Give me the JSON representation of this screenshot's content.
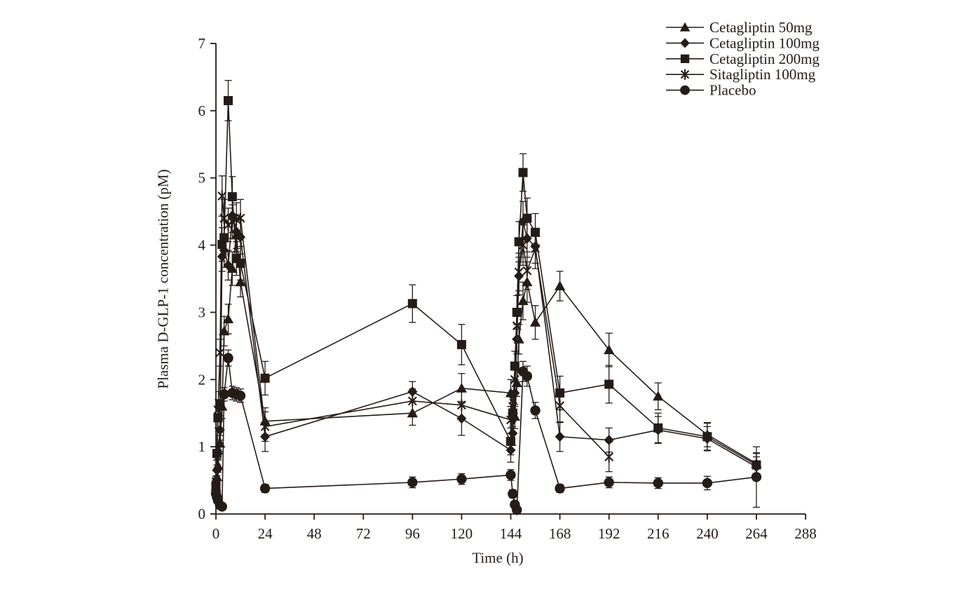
{
  "figure": {
    "background": "#ffffff",
    "ink": "#251c17"
  },
  "chart_data": {
    "type": "line",
    "title": "",
    "xlabel": "Time (h)",
    "ylabel": "Plasma D-GLP-1 concentration (pM)",
    "xlim": [
      0,
      288
    ],
    "ylim": [
      0,
      7
    ],
    "xticks": [
      0,
      24,
      48,
      72,
      96,
      120,
      144,
      168,
      192,
      216,
      240,
      264,
      288
    ],
    "yticks": [
      0,
      1,
      2,
      3,
      4,
      5,
      6,
      7
    ],
    "grid": false,
    "legend_position": "top-right",
    "error_bars": true,
    "series": [
      {
        "name": "Cetagliptin 50mg",
        "marker": "triangle",
        "x": [
          0,
          0.5,
          1,
          2,
          3,
          4,
          6,
          8,
          10,
          12,
          24,
          96,
          120,
          144,
          145,
          146,
          147,
          148,
          150,
          152,
          156,
          168,
          192,
          216,
          240,
          264
        ],
        "y": [
          0.4,
          0.55,
          0.72,
          1.05,
          1.6,
          2.72,
          2.9,
          3.65,
          4.15,
          3.45,
          1.38,
          1.5,
          1.87,
          1.8,
          1.55,
          1.45,
          1.95,
          2.6,
          3.17,
          3.45,
          2.85,
          3.39,
          2.44,
          1.75,
          1.18,
          0.75
        ],
        "err": [
          0.08,
          0.08,
          0.1,
          0.12,
          0.18,
          0.22,
          0.22,
          0.25,
          0.25,
          0.22,
          0.2,
          0.18,
          0.22,
          0.2,
          0.18,
          0.18,
          0.2,
          0.22,
          0.28,
          0.3,
          0.25,
          0.22,
          0.25,
          0.2,
          0.18,
          0.15
        ]
      },
      {
        "name": "Cetagliptin 100mg",
        "marker": "diamond",
        "x": [
          0,
          0.5,
          1,
          2,
          3,
          4,
          6,
          8,
          10,
          12,
          24,
          96,
          120,
          144,
          145,
          146,
          147,
          148,
          150,
          152,
          156,
          168,
          192,
          216,
          240,
          264
        ],
        "y": [
          0.45,
          0.65,
          0.9,
          1.25,
          3.83,
          3.92,
          3.7,
          4.44,
          4.2,
          4.12,
          1.15,
          1.82,
          1.42,
          0.95,
          1.2,
          1.8,
          2.6,
          3.54,
          4.35,
          4.1,
          3.98,
          1.15,
          1.1,
          1.25,
          1.12,
          0.7
        ],
        "err": [
          0.08,
          0.08,
          0.1,
          0.15,
          0.22,
          0.25,
          0.22,
          0.25,
          0.25,
          0.25,
          0.22,
          0.15,
          0.25,
          0.18,
          0.18,
          0.2,
          0.22,
          0.28,
          0.3,
          0.28,
          0.25,
          0.22,
          0.18,
          0.2,
          0.18,
          0.15
        ]
      },
      {
        "name": "Cetagliptin 200mg",
        "marker": "square",
        "x": [
          0,
          0.5,
          1,
          2,
          3,
          4,
          6,
          8,
          10,
          12,
          24,
          96,
          120,
          144,
          145,
          146,
          147,
          148,
          150,
          152,
          156,
          168,
          192,
          216,
          240,
          264
        ],
        "y": [
          0.42,
          0.9,
          1.43,
          1.64,
          4.01,
          4.11,
          6.15,
          4.72,
          3.8,
          3.73,
          2.02,
          3.13,
          2.52,
          1.08,
          1.5,
          2.2,
          3.0,
          4.05,
          5.08,
          4.4,
          4.19,
          1.8,
          1.93,
          1.28,
          1.15,
          0.73
        ],
        "err": [
          0.08,
          0.1,
          0.15,
          0.18,
          0.25,
          0.25,
          0.3,
          0.3,
          0.25,
          0.25,
          0.25,
          0.28,
          0.3,
          0.2,
          0.2,
          0.22,
          0.25,
          0.3,
          0.28,
          0.3,
          0.28,
          0.25,
          0.28,
          0.22,
          0.2,
          0.18
        ]
      },
      {
        "name": "Sitagliptin 100mg",
        "marker": "asterisk",
        "x": [
          0,
          0.5,
          1,
          2,
          3,
          4,
          6,
          8,
          10,
          12,
          24,
          96,
          120,
          144,
          145,
          146,
          147,
          148,
          150,
          152,
          156,
          168,
          192
        ],
        "y": [
          0.48,
          0.9,
          1.55,
          2.4,
          4.73,
          4.4,
          4.3,
          4.35,
          4.38,
          4.4,
          1.3,
          1.68,
          1.62,
          1.4,
          1.6,
          2.0,
          2.8,
          3.6,
          4.0,
          3.62,
          3.95,
          1.61,
          0.85
        ],
        "err": [
          0.08,
          0.1,
          0.15,
          0.2,
          0.3,
          0.28,
          0.25,
          0.25,
          0.25,
          0.28,
          0.22,
          0.18,
          0.2,
          0.2,
          0.18,
          0.2,
          0.22,
          0.28,
          0.3,
          0.28,
          0.3,
          0.25,
          0.22
        ]
      },
      {
        "name": "Placebo",
        "marker": "circle",
        "x": [
          0,
          0.5,
          1,
          2,
          3,
          4,
          6,
          8,
          10,
          12,
          24,
          96,
          120,
          144,
          145,
          146,
          147,
          150,
          152,
          156,
          168,
          192,
          216,
          240,
          264
        ],
        "y": [
          0.3,
          0.25,
          0.2,
          0.13,
          0.11,
          1.78,
          2.32,
          1.8,
          1.78,
          1.76,
          0.38,
          0.47,
          0.52,
          0.58,
          0.3,
          0.14,
          0.06,
          2.12,
          2.05,
          1.54,
          0.38,
          0.47,
          0.46,
          0.46,
          0.55
        ],
        "err": [
          0.05,
          0.05,
          0.05,
          0.04,
          0.04,
          0.1,
          0.12,
          0.1,
          0.1,
          0.1,
          0.06,
          0.08,
          0.08,
          0.08,
          0.06,
          0.05,
          0.04,
          0.15,
          0.15,
          0.12,
          0.06,
          0.08,
          0.08,
          0.1,
          0.45
        ]
      }
    ]
  }
}
